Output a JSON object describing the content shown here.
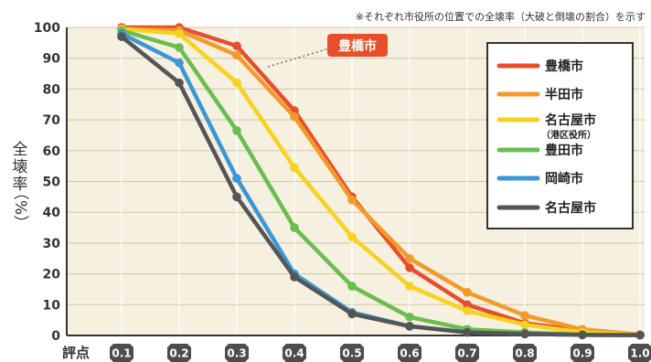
{
  "chart_data": {
    "type": "line",
    "note": "※それぞれ市役所の位置での全壊率（大破と倒壊の割合）を示す",
    "ylabel_chars": [
      "全",
      "壊",
      "率",
      "（%）"
    ],
    "xlabel": "評点",
    "x": [
      0.1,
      0.2,
      0.3,
      0.4,
      0.5,
      0.6,
      0.7,
      0.8,
      0.9,
      1.0
    ],
    "x_tick_labels": [
      "0.1",
      "0.2",
      "0.3",
      "0.4",
      "0.5",
      "0.6",
      "0.7",
      "0.8",
      "0.9",
      "1.0"
    ],
    "y_ticks": [
      0,
      10,
      20,
      30,
      40,
      50,
      60,
      70,
      80,
      90,
      100
    ],
    "ylim": [
      0,
      100
    ],
    "callout": "豊橋市",
    "series": [
      {
        "name": "豊橋市",
        "color": "#e84e2a",
        "values": [
          100,
          100,
          94,
          73,
          45,
          22,
          10,
          4,
          1.5,
          0.3
        ]
      },
      {
        "name": "半田市",
        "color": "#f39a2c",
        "values": [
          99.5,
          99,
          91,
          71,
          44,
          25,
          14,
          6.5,
          2,
          0.3
        ]
      },
      {
        "name": "名古屋市",
        "sub": "（港区役所）",
        "color": "#f7d21f",
        "values": [
          99.5,
          98,
          82,
          54.5,
          32,
          16,
          8,
          3.5,
          1,
          0.2
        ]
      },
      {
        "name": "豊田市",
        "color": "#6cbd4f",
        "values": [
          99,
          93.5,
          66.5,
          35,
          16,
          6,
          2,
          1,
          0.3,
          0.1
        ]
      },
      {
        "name": "岡崎市",
        "color": "#3a96d6",
        "values": [
          98,
          88.5,
          51,
          20,
          7.5,
          3,
          1,
          0.5,
          0.2,
          0.1
        ]
      },
      {
        "name": "名古屋市",
        "color": "#555555",
        "values": [
          97,
          82,
          45,
          19,
          7,
          3,
          1,
          0.5,
          0.2,
          0.1
        ]
      }
    ]
  }
}
